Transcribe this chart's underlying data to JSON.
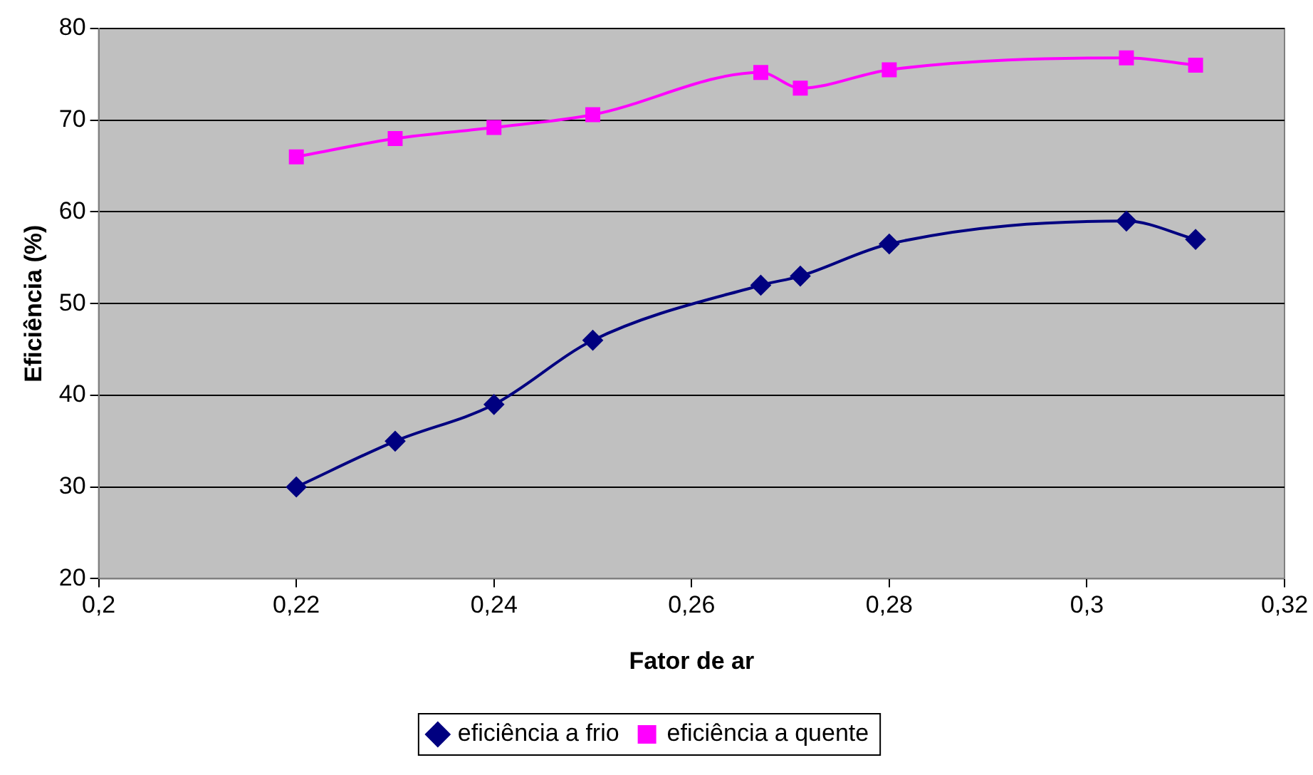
{
  "chart_data": {
    "type": "line",
    "xlabel": "Fator de ar",
    "ylabel": "Eficiência (%)",
    "xlim": [
      0.2,
      0.32
    ],
    "xticks": [
      {
        "value": 0.2,
        "label": "0,2"
      },
      {
        "value": 0.22,
        "label": "0,22"
      },
      {
        "value": 0.24,
        "label": "0,24"
      },
      {
        "value": 0.26,
        "label": "0,26"
      },
      {
        "value": 0.28,
        "label": "0,28"
      },
      {
        "value": 0.3,
        "label": "0,3"
      },
      {
        "value": 0.32,
        "label": "0,32"
      }
    ],
    "ylim": [
      20,
      80
    ],
    "yticks": [
      20,
      30,
      40,
      50,
      60,
      70,
      80
    ],
    "grid": "y",
    "legend": "bottom",
    "x": [
      0.22,
      0.23,
      0.24,
      0.25,
      0.267,
      0.271,
      0.28,
      0.304,
      0.311
    ],
    "series": [
      {
        "name": "eficiência a frio",
        "color": "#000080",
        "marker": "diamond",
        "values": [
          30,
          35,
          39,
          46,
          52,
          53,
          56.5,
          59,
          57
        ]
      },
      {
        "name": "eficiência a quente",
        "color": "#ff00ff",
        "marker": "square",
        "values": [
          66,
          68,
          69.2,
          70.6,
          75.2,
          73.5,
          75.5,
          76.8,
          76
        ]
      }
    ]
  }
}
